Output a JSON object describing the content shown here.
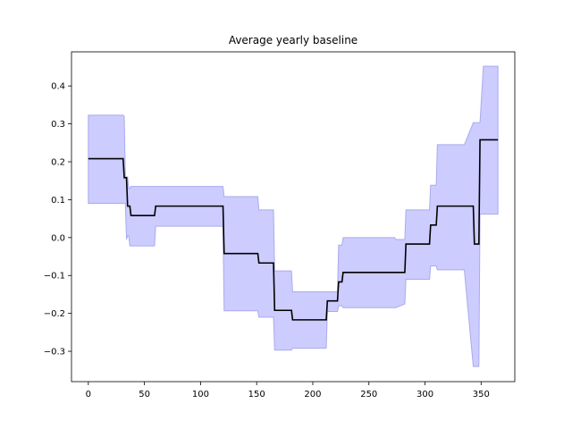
{
  "chart_data": {
    "type": "line",
    "title": "Average yearly baseline",
    "xlabel": "",
    "ylabel": "",
    "xlim": [
      -15,
      380
    ],
    "ylim": [
      -0.38,
      0.49
    ],
    "xticks": [
      0,
      50,
      100,
      150,
      200,
      250,
      300,
      350
    ],
    "xtick_labels": [
      "0",
      "50",
      "100",
      "150",
      "200",
      "250",
      "300",
      "350"
    ],
    "yticks": [
      -0.3,
      -0.2,
      -0.1,
      0.0,
      0.1,
      0.2,
      0.3,
      0.4
    ],
    "ytick_labels": [
      "−0.3",
      "−0.2",
      "−0.1",
      "0.0",
      "0.1",
      "0.2",
      "0.3",
      "0.4"
    ],
    "grid": false,
    "colors": {
      "line": "#000000",
      "band_fill": "#ccccff",
      "band_edge": "#aaaaee",
      "axes": "#000000"
    },
    "series": [
      {
        "kind": "step-line",
        "x": [
          0,
          31,
          32,
          34,
          35,
          37,
          38,
          59,
          60,
          120,
          121,
          151,
          152,
          165,
          166,
          181,
          182,
          212,
          213,
          222,
          223,
          226,
          227,
          282,
          283,
          304,
          305,
          310,
          311,
          334,
          335,
          343,
          344,
          348,
          349,
          365
        ],
        "y": [
          0.208,
          0.208,
          0.158,
          0.158,
          0.083,
          0.083,
          0.058,
          0.058,
          0.083,
          0.083,
          -0.042,
          -0.042,
          -0.067,
          -0.067,
          -0.192,
          -0.192,
          -0.217,
          -0.217,
          -0.167,
          -0.167,
          -0.117,
          -0.117,
          -0.092,
          -0.092,
          -0.017,
          -0.017,
          0.033,
          0.033,
          0.083,
          0.083,
          0.083,
          0.083,
          -0.017,
          -0.017,
          0.258,
          0.258
        ]
      },
      {
        "kind": "band",
        "x": [
          0,
          31,
          32,
          33,
          34,
          35,
          36,
          37,
          38,
          59,
          60,
          120,
          121,
          151,
          152,
          165,
          166,
          181,
          182,
          212,
          213,
          222,
          223,
          226,
          227,
          273,
          274,
          282,
          283,
          304,
          305,
          310,
          311,
          334,
          335,
          343,
          344,
          348,
          349,
          352,
          353,
          365
        ],
        "upper": [
          0.323,
          0.323,
          0.32,
          0.16,
          0.16,
          0.16,
          0.13,
          0.13,
          0.135,
          0.135,
          0.135,
          0.135,
          0.108,
          0.108,
          0.073,
          0.073,
          -0.088,
          -0.088,
          -0.143,
          -0.143,
          -0.143,
          -0.143,
          -0.02,
          -0.02,
          0.0,
          0.0,
          -0.005,
          -0.005,
          0.073,
          0.073,
          0.138,
          0.138,
          0.245,
          0.245,
          0.245,
          0.303,
          0.303,
          0.303,
          0.303,
          0.452,
          0.452,
          0.452
        ],
        "lower": [
          0.09,
          0.09,
          0.09,
          0.09,
          -0.005,
          0.005,
          0.005,
          -0.022,
          -0.022,
          -0.022,
          0.03,
          0.03,
          -0.193,
          -0.193,
          -0.21,
          -0.21,
          -0.297,
          -0.297,
          -0.292,
          -0.292,
          -0.195,
          -0.195,
          -0.18,
          -0.18,
          -0.185,
          -0.185,
          -0.185,
          -0.175,
          -0.11,
          -0.11,
          -0.075,
          -0.075,
          -0.085,
          -0.085,
          -0.085,
          -0.34,
          -0.34,
          -0.34,
          0.062,
          0.062,
          0.062,
          0.062
        ]
      }
    ]
  }
}
